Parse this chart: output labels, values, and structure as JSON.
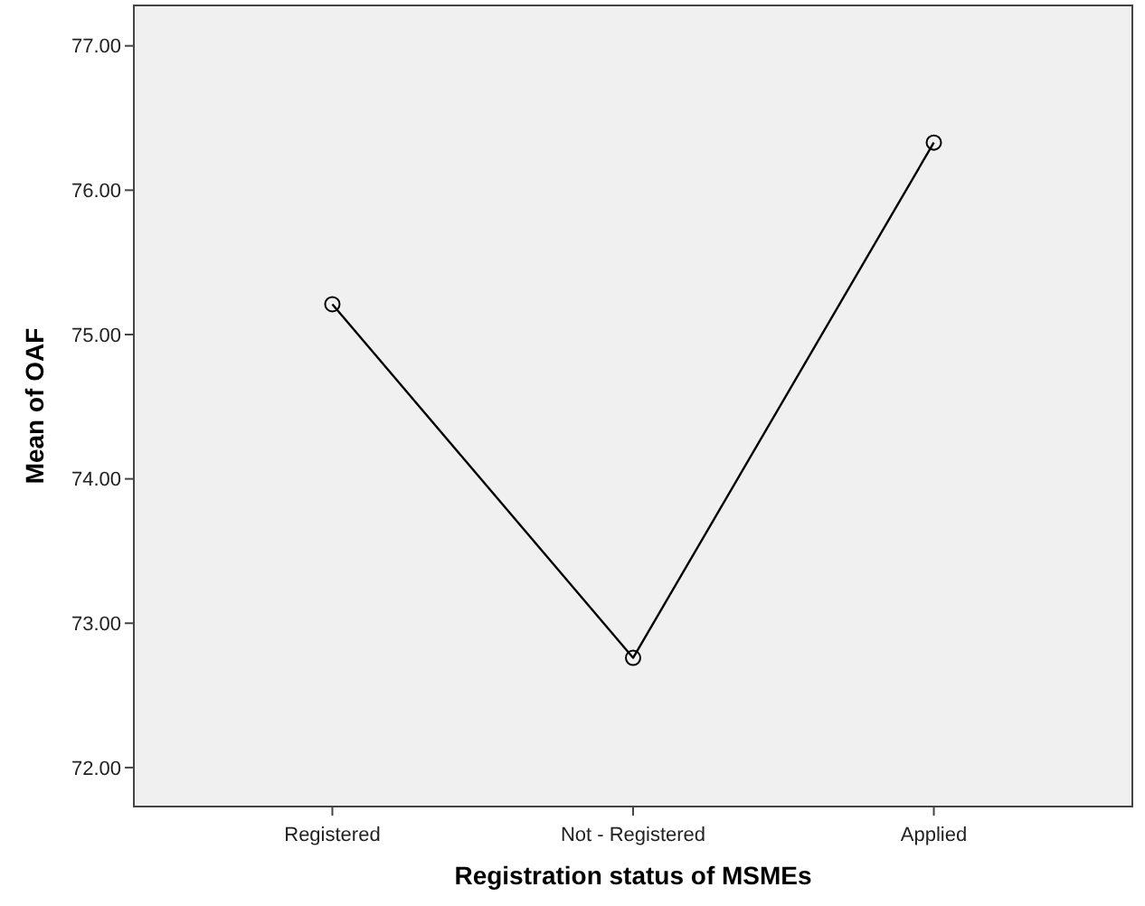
{
  "chart_data": {
    "type": "line",
    "xlabel": "Registration status of MSMEs",
    "ylabel": "Mean of OAF",
    "categories": [
      "Registered",
      "Not - Registered",
      "Applied"
    ],
    "series": [
      {
        "color": "#000000",
        "values": [
          75.21,
          72.76,
          76.33
        ]
      }
    ],
    "ylim": [
      71.73,
      77.28
    ],
    "yticks": [
      {
        "value": 72,
        "label": "72.00"
      },
      {
        "value": 73,
        "label": "73.00"
      },
      {
        "value": 74,
        "label": "74.00"
      },
      {
        "value": 75,
        "label": "75.00"
      },
      {
        "value": 76,
        "label": "76.00"
      },
      {
        "value": 77,
        "label": "77.00"
      }
    ],
    "marker": "circle",
    "grid": false
  }
}
